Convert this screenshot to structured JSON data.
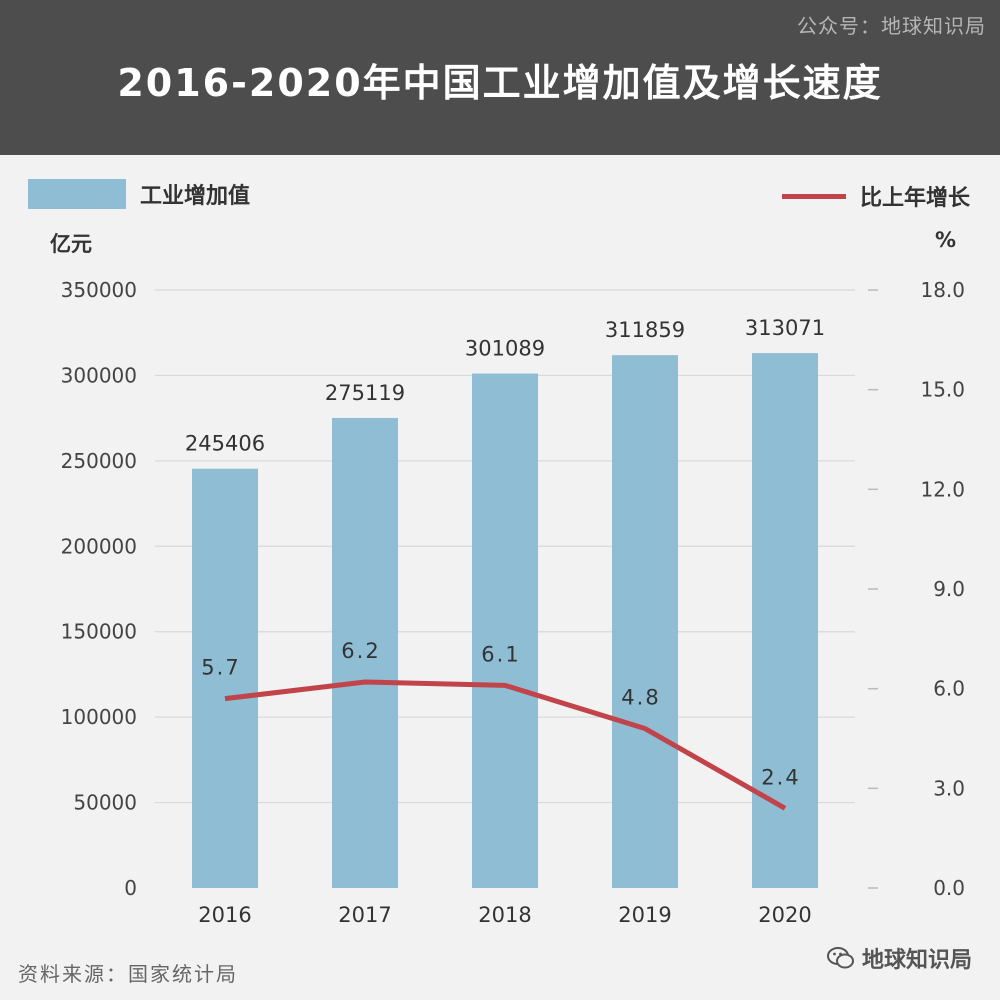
{
  "header": {
    "account": "公众号：地球知识局",
    "title": "2016-2020年中国工业增加值及增长速度"
  },
  "legend": {
    "bar_label": "工业增加值",
    "line_label": "比上年增长"
  },
  "units": {
    "left": "亿元",
    "right": "%"
  },
  "chart_data": {
    "type": "bar",
    "categories": [
      "2016",
      "2017",
      "2018",
      "2019",
      "2020"
    ],
    "series": [
      {
        "name": "工业增加值",
        "type": "bar",
        "axis": "left",
        "values": [
          245406,
          275119,
          301089,
          311859,
          313071
        ],
        "labels": [
          "245406",
          "275119",
          "301089",
          "311859",
          "313071"
        ]
      },
      {
        "name": "比上年增长",
        "type": "line",
        "axis": "right",
        "values": [
          5.7,
          6.2,
          6.1,
          4.8,
          2.4
        ],
        "labels": [
          "5.7",
          "6.2",
          "6.1",
          "4.8",
          "2.4"
        ]
      }
    ],
    "ylim_left": [
      0,
      350000
    ],
    "yticks_left": [
      "0",
      "50000",
      "100000",
      "150000",
      "200000",
      "250000",
      "300000",
      "350000"
    ],
    "ylim_right": [
      0,
      18
    ],
    "yticks_right": [
      "0.0",
      "3.0",
      "6.0",
      "9.0",
      "12.0",
      "15.0",
      "18.0"
    ],
    "grid": true,
    "colors": {
      "bar": "#8fbdd3",
      "line": "#c0444a",
      "grid": "#d9d9d9"
    }
  },
  "footer": {
    "source": "资料来源：国家统计局",
    "brand": "地球知识局"
  }
}
